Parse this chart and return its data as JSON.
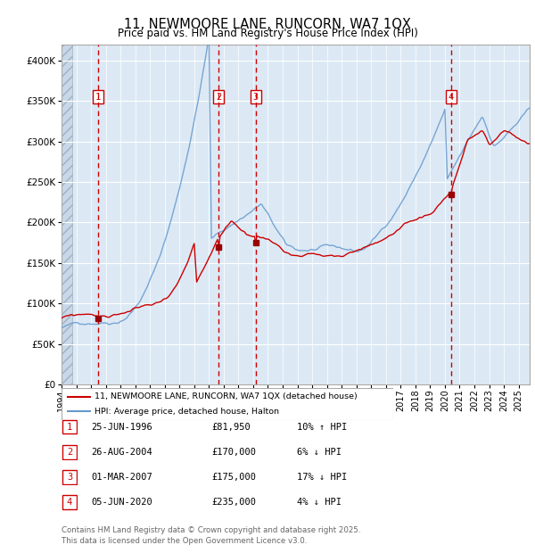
{
  "title": "11, NEWMOORE LANE, RUNCORN, WA7 1QX",
  "subtitle": "Price paid vs. HM Land Registry's House Price Index (HPI)",
  "legend_label_red": "11, NEWMOORE LANE, RUNCORN, WA7 1QX (detached house)",
  "legend_label_blue": "HPI: Average price, detached house, Halton",
  "footer": "Contains HM Land Registry data © Crown copyright and database right 2025.\nThis data is licensed under the Open Government Licence v3.0.",
  "ylim": [
    0,
    420000
  ],
  "yticks": [
    0,
    50000,
    100000,
    150000,
    200000,
    250000,
    300000,
    350000,
    400000
  ],
  "background_color": "#dce9f5",
  "grid_color": "#ffffff",
  "red_line_color": "#cc0000",
  "blue_line_color": "#6699cc",
  "marker_color": "#990000",
  "vline_color": "#cc0000",
  "sale_points": [
    {
      "date_num": 1996.48,
      "price": 81950,
      "label": "1"
    },
    {
      "date_num": 2004.65,
      "price": 170000,
      "label": "2"
    },
    {
      "date_num": 2007.17,
      "price": 175000,
      "label": "3"
    },
    {
      "date_num": 2020.42,
      "price": 235000,
      "label": "4"
    }
  ],
  "table_rows": [
    {
      "num": "1",
      "date": "25-JUN-1996",
      "price": "£81,950",
      "hpi": "10% ↑ HPI"
    },
    {
      "num": "2",
      "date": "26-AUG-2004",
      "price": "£170,000",
      "hpi": "6% ↓ HPI"
    },
    {
      "num": "3",
      "date": "01-MAR-2007",
      "price": "£175,000",
      "hpi": "17% ↓ HPI"
    },
    {
      "num": "4",
      "date": "05-JUN-2020",
      "price": "£235,000",
      "hpi": "4% ↓ HPI"
    }
  ],
  "xlim_start": 1994.0,
  "xlim_end": 2025.75
}
